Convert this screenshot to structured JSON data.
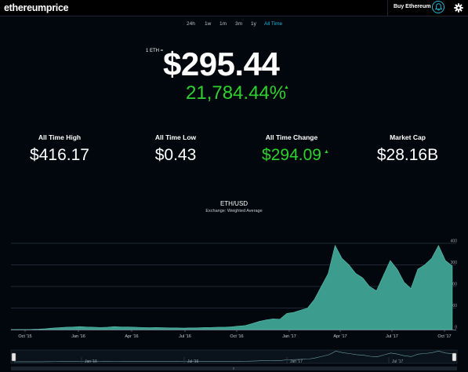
{
  "header": {
    "logo": "ethereumprice",
    "buy_label": "Buy Ethereum",
    "bell_icon": "bell-icon",
    "gear_icon": "gear-icon",
    "accent_color": "#1fb8d7"
  },
  "ranges": [
    {
      "label": "24h",
      "active": false
    },
    {
      "label": "1w",
      "active": false
    },
    {
      "label": "1m",
      "active": false
    },
    {
      "label": "3m",
      "active": false
    },
    {
      "label": "1y",
      "active": false
    },
    {
      "label": "All Time",
      "active": true
    }
  ],
  "price": {
    "unit_label": "1 ETH =",
    "value": "$295.44",
    "change_pct": "21,784.44%",
    "change_arrow": "▲",
    "positive_color": "#2fd12f"
  },
  "stats": [
    {
      "label": "All Time High",
      "value": "$416.17"
    },
    {
      "label": "All Time Low",
      "value": "$0.43"
    },
    {
      "label": "All Time Change",
      "value": "$294.09",
      "arrow": "▲"
    },
    {
      "label": "Market Cap",
      "value": "$28.16B"
    }
  ],
  "chart_data": {
    "type": "area",
    "title": "ETH/USD",
    "subtitle": "Exchange: Weighted Average",
    "ylim": [
      0,
      400
    ],
    "yticks": [
      0,
      100,
      200,
      300,
      400
    ],
    "xticks": [
      "Oct '15",
      "Jan '16",
      "Apr '16",
      "Jul '16",
      "Oct '16",
      "Jan '17",
      "Apr '17",
      "Jul '17",
      "Oct '17"
    ],
    "navigator_ticks": [
      "Jan '16",
      "Jul '16",
      "Jan '17",
      "Jul '17"
    ],
    "fill_color": "#3c9c8e",
    "series": [
      {
        "values": [
          0.4,
          0.9,
          0.9,
          1,
          2,
          4,
          7,
          9,
          11,
          12,
          14,
          12,
          11,
          10,
          11,
          14,
          12,
          12,
          11,
          10,
          9,
          10,
          9,
          8,
          8,
          7,
          8,
          8,
          10,
          10,
          11,
          11,
          13,
          16,
          19,
          28,
          38,
          45,
          50,
          48,
          75,
          80,
          90,
          100,
          140,
          200,
          260,
          390,
          330,
          300,
          260,
          240,
          200,
          180,
          250,
          320,
          280,
          220,
          190,
          280,
          300,
          330,
          390,
          320,
          295
        ]
      }
    ]
  }
}
